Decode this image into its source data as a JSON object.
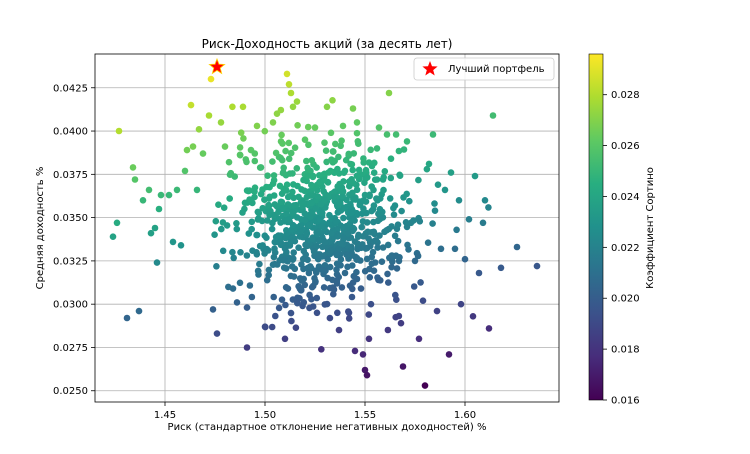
{
  "chart_data": {
    "type": "scatter",
    "title": "Риск-Доходность акций (за десять лет)",
    "xlabel": "Риск (стандартное отклонение негативных доходностей) %",
    "ylabel": "Средняя доходность %",
    "xlim": [
      1.415,
      1.647
    ],
    "ylim": [
      0.02435,
      0.04445
    ],
    "x_ticks": [
      1.45,
      1.5,
      1.55,
      1.6
    ],
    "x_tick_labels": [
      "1.45",
      "1.50",
      "1.55",
      "1.60"
    ],
    "y_ticks": [
      0.025,
      0.0275,
      0.03,
      0.0325,
      0.035,
      0.0375,
      0.04,
      0.0425
    ],
    "y_tick_labels": [
      "0.0250",
      "0.0275",
      "0.0300",
      "0.0325",
      "0.0350",
      "0.0375",
      "0.0400",
      "0.0425"
    ],
    "grid": true,
    "colormap": "viridis",
    "colorbar": {
      "label": "Коэффициент Сортино",
      "range": [
        0.016,
        0.0296
      ],
      "ticks": [
        0.016,
        0.018,
        0.02,
        0.022,
        0.024,
        0.026,
        0.028
      ],
      "tick_labels": [
        "0.016",
        "0.018",
        "0.020",
        "0.022",
        "0.024",
        "0.026",
        "0.028"
      ]
    },
    "legend": {
      "label": "Лучший портфель",
      "placement": "top-right"
    },
    "best_portfolio": {
      "x": 1.476,
      "y": 0.0437,
      "color": "#ff0000"
    },
    "points": [
      [
        1.427,
        0.04
      ],
      [
        1.424,
        0.0339
      ],
      [
        1.426,
        0.0347
      ],
      [
        1.431,
        0.0292
      ],
      [
        1.437,
        0.0296
      ],
      [
        1.434,
        0.0379
      ],
      [
        1.435,
        0.0372
      ],
      [
        1.439,
        0.036
      ],
      [
        1.442,
        0.0366
      ],
      [
        1.443,
        0.0341
      ],
      [
        1.445,
        0.0344
      ],
      [
        1.446,
        0.0324
      ],
      [
        1.447,
        0.0355
      ],
      [
        1.448,
        0.0363
      ],
      [
        1.452,
        0.0363
      ],
      [
        1.454,
        0.0336
      ],
      [
        1.456,
        0.0366
      ],
      [
        1.458,
        0.0334
      ],
      [
        1.46,
        0.0377
      ],
      [
        1.461,
        0.0389
      ],
      [
        1.463,
        0.0415
      ],
      [
        1.464,
        0.0391
      ],
      [
        1.466,
        0.0366
      ],
      [
        1.467,
        0.0401
      ],
      [
        1.469,
        0.0387
      ],
      [
        1.472,
        0.0409
      ],
      [
        1.473,
        0.043
      ],
      [
        1.474,
        0.0297
      ],
      [
        1.476,
        0.0283
      ],
      [
        1.478,
        0.0405
      ],
      [
        1.48,
        0.0391
      ],
      [
        1.482,
        0.0382
      ],
      [
        1.484,
        0.0309
      ],
      [
        1.486,
        0.0301
      ],
      [
        1.489,
        0.0414
      ],
      [
        1.491,
        0.0298
      ],
      [
        1.491,
        0.0275
      ],
      [
        1.493,
        0.0389
      ],
      [
        1.496,
        0.0403
      ],
      [
        1.498,
        0.0379
      ],
      [
        1.5,
        0.0287
      ],
      [
        1.502,
        0.0361
      ],
      [
        1.504,
        0.0405
      ],
      [
        1.506,
        0.041
      ],
      [
        1.507,
        0.0385
      ],
      [
        1.508,
        0.0394
      ],
      [
        1.51,
        0.028
      ],
      [
        1.511,
        0.0433
      ],
      [
        1.512,
        0.0427
      ],
      [
        1.513,
        0.0422
      ],
      [
        1.514,
        0.0414
      ],
      [
        1.516,
        0.0417
      ],
      [
        1.518,
        0.0308
      ],
      [
        1.52,
        0.0395
      ],
      [
        1.522,
        0.0365
      ],
      [
        1.525,
        0.0402
      ],
      [
        1.526,
        0.0295
      ],
      [
        1.528,
        0.0341
      ],
      [
        1.531,
        0.0414
      ],
      [
        1.533,
        0.0399
      ],
      [
        1.535,
        0.0365
      ],
      [
        1.537,
        0.0285
      ],
      [
        1.539,
        0.0403
      ],
      [
        1.54,
        0.0318
      ],
      [
        1.542,
        0.0295
      ],
      [
        1.544,
        0.0413
      ],
      [
        1.545,
        0.0273
      ],
      [
        1.546,
        0.0405
      ],
      [
        1.548,
        0.0309
      ],
      [
        1.549,
        0.0271
      ],
      [
        1.55,
        0.0262
      ],
      [
        1.551,
        0.0259
      ],
      [
        1.552,
        0.028
      ],
      [
        1.553,
        0.03
      ],
      [
        1.554,
        0.033
      ],
      [
        1.556,
        0.039
      ],
      [
        1.557,
        0.0402
      ],
      [
        1.559,
        0.0372
      ],
      [
        1.561,
        0.0398
      ],
      [
        1.562,
        0.0422
      ],
      [
        1.563,
        0.0384
      ],
      [
        1.565,
        0.0357
      ],
      [
        1.567,
        0.0325
      ],
      [
        1.568,
        0.0289
      ],
      [
        1.569,
        0.0264
      ],
      [
        1.571,
        0.0394
      ],
      [
        1.573,
        0.0347
      ],
      [
        1.575,
        0.0325
      ],
      [
        1.577,
        0.028
      ],
      [
        1.579,
        0.0302
      ],
      [
        1.58,
        0.0253
      ],
      [
        1.582,
        0.0381
      ],
      [
        1.584,
        0.0398
      ],
      [
        1.585,
        0.0354
      ],
      [
        1.586,
        0.0296
      ],
      [
        1.588,
        0.0332
      ],
      [
        1.59,
        0.0366
      ],
      [
        1.592,
        0.0271
      ],
      [
        1.593,
        0.0376
      ],
      [
        1.595,
        0.0332
      ],
      [
        1.597,
        0.036
      ],
      [
        1.598,
        0.03
      ],
      [
        1.6,
        0.0326
      ],
      [
        1.602,
        0.0349
      ],
      [
        1.604,
        0.0293
      ],
      [
        1.605,
        0.0374
      ],
      [
        1.607,
        0.0318
      ],
      [
        1.609,
        0.0347
      ],
      [
        1.61,
        0.036
      ],
      [
        1.612,
        0.0286
      ],
      [
        1.614,
        0.0409
      ],
      [
        1.618,
        0.0321
      ],
      [
        1.626,
        0.0333
      ],
      [
        1.636,
        0.0322
      ]
    ],
    "cluster": {
      "center": [
        1.528,
        0.0347
      ],
      "spread": [
        0.0215,
        0.0023
      ],
      "count": 820,
      "seed": 7
    }
  }
}
